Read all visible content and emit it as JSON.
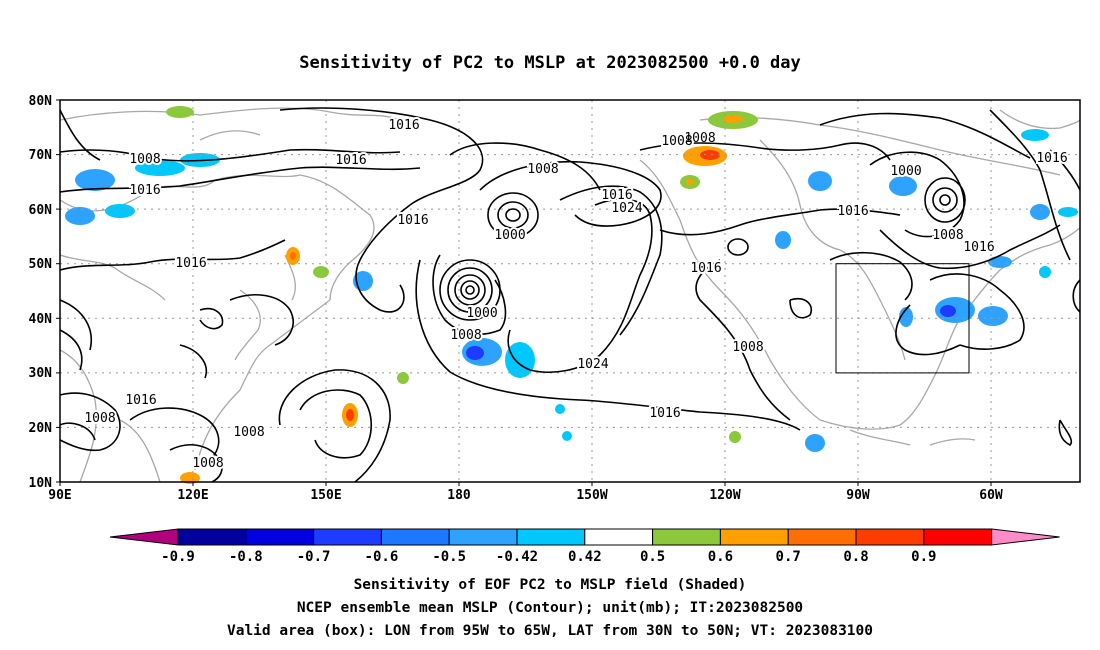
{
  "title": "Sensitivity of PC2 to MSLP at 2023082500 +0.0 day",
  "map": {
    "lat_ticks": [
      "80N",
      "70N",
      "60N",
      "50N",
      "40N",
      "30N",
      "20N",
      "10N"
    ],
    "lon_ticks": [
      "90E",
      "120E",
      "150E",
      "180",
      "150W",
      "120W",
      "90W",
      "60W"
    ],
    "grid": "dotted"
  },
  "contour_labels": [
    "1016",
    "1008",
    "1016",
    "1016",
    "1008",
    "1000",
    "1016",
    "1016",
    "1016",
    "1016",
    "1024",
    "1000",
    "1008",
    "1016",
    "1000",
    "1016",
    "1008",
    "1016",
    "1016",
    "1008",
    "1024",
    "1008",
    "1016",
    "1008",
    "1008",
    "1008",
    "1008"
  ],
  "valid_box": {
    "lon_from": "95W",
    "lon_to": "65W",
    "lat_from": "30N",
    "lat_to": "50N"
  },
  "colorbar": {
    "labels": [
      "-0.9",
      "-0.8",
      "-0.7",
      "-0.6",
      "-0.5",
      "-0.42",
      "0.42",
      "0.5",
      "0.6",
      "0.7",
      "0.8",
      "0.9"
    ],
    "colors": [
      "#b0007e",
      "#00009e",
      "#0000e0",
      "#1e3cff",
      "#1e78ff",
      "#2ea2ff",
      "#00c8ff",
      "#ffffff",
      "#8cc83c",
      "#ffa000",
      "#ff6e00",
      "#ff3c00",
      "#ff0000",
      "#ff8cc8"
    ]
  },
  "captions": [
    "Sensitivity of EOF PC2 to MSLP field (Shaded)",
    "NCEP ensemble mean MSLP (Contour); unit(mb); IT:2023082500",
    "Valid area (box): LON from 95W to 65W, LAT from 30N to 50N; VT: 2023083100"
  ]
}
